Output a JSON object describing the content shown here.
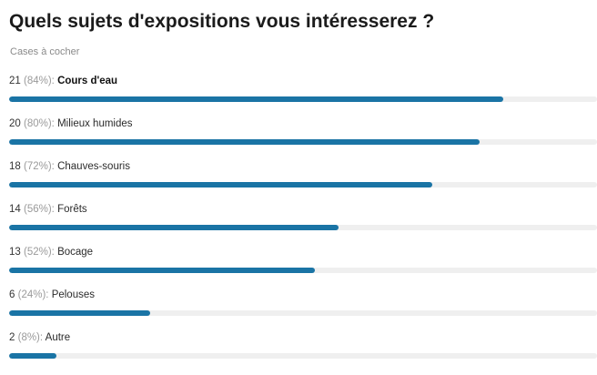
{
  "question": {
    "title": "Quels sujets d'expositions vous intéresserez ?",
    "subtitle": "Cases à cocher"
  },
  "colors": {
    "bar": "#1a74a5",
    "track": "#efefef"
  },
  "chart_data": {
    "type": "bar",
    "orientation": "horizontal",
    "categories": [
      "Cours d'eau",
      "Milieux humides",
      "Chauves-souris",
      "Forêts",
      "Bocage",
      "Pelouses",
      "Autre"
    ],
    "values": [
      21,
      20,
      18,
      14,
      13,
      6,
      2
    ],
    "percents": [
      "84%",
      "80%",
      "72%",
      "56%",
      "52%",
      "24%",
      "8%"
    ],
    "xlim": [
      0,
      25
    ],
    "grid": false
  },
  "options": [
    {
      "count": "21",
      "percent": "(84%):",
      "label": "Cours d'eau",
      "value": 21
    },
    {
      "count": "20",
      "percent": "(80%):",
      "label": "Milieux humides",
      "value": 20
    },
    {
      "count": "18",
      "percent": "(72%):",
      "label": "Chauves-souris",
      "value": 18
    },
    {
      "count": "14",
      "percent": "(56%):",
      "label": "Forêts",
      "value": 14
    },
    {
      "count": "13",
      "percent": "(52%):",
      "label": "Bocage",
      "value": 13
    },
    {
      "count": "6",
      "percent": "(24%):",
      "label": "Pelouses",
      "value": 6
    },
    {
      "count": "2",
      "percent": "(8%):",
      "label": "Autre",
      "value": 2
    }
  ]
}
